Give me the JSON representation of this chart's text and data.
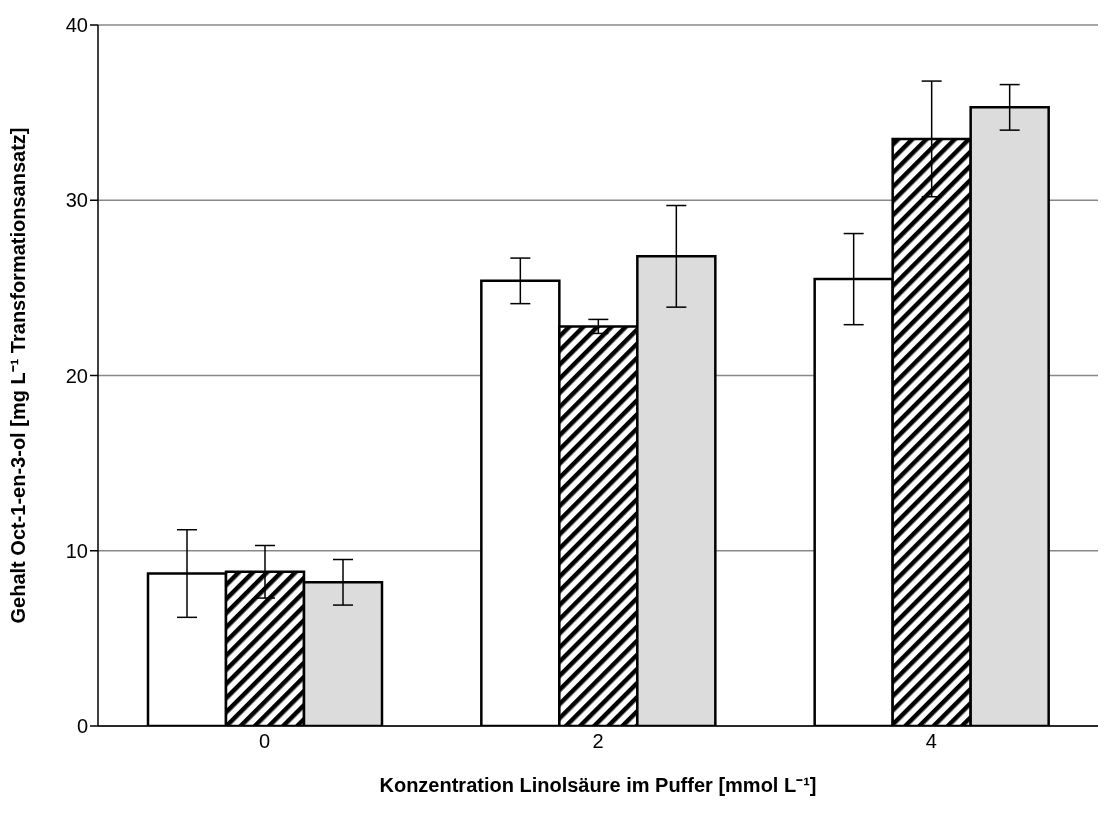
{
  "chart_data": {
    "type": "bar",
    "xlabel": "Konzentration Linolsäure im Puffer [mmol L⁻¹]",
    "ylabel": "Gehalt Oct-1-en-3-ol [mg L⁻¹ Transformationsansatz]",
    "categories": [
      "0",
      "2",
      "4"
    ],
    "series": [
      {
        "color": "#ffffff",
        "values": [
          8.7,
          25.4,
          25.5
        ],
        "errors": [
          2.5,
          1.3,
          2.6
        ]
      },
      {
        "color": "#000000",
        "values": [
          8.8,
          22.8,
          33.5
        ],
        "errors": [
          1.5,
          0.4,
          3.3
        ]
      },
      {
        "color": "#dcdcdc",
        "values": [
          8.2,
          26.8,
          35.3
        ],
        "errors": [
          1.3,
          2.9,
          1.3
        ]
      }
    ],
    "ylim": [
      0,
      40
    ],
    "yticks": [
      0,
      10,
      20,
      30,
      40
    ],
    "grid": "y"
  }
}
